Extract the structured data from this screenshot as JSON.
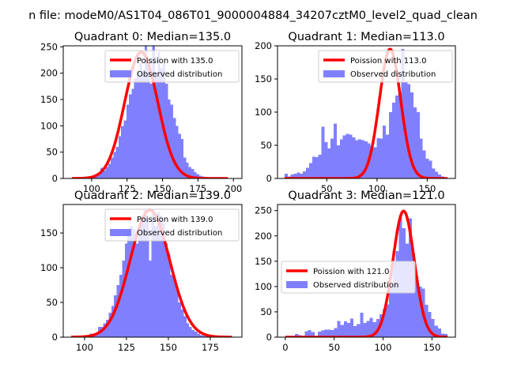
{
  "figure": {
    "suptitle": "n file: modeM0/AS1T04_086T01_9000004884_34207cztM0_level2_quad_clean"
  },
  "colors": {
    "poisson_line": "#ff0000",
    "histogram": "#8080ff",
    "axes": "#000000",
    "legend_border": "#cccccc"
  },
  "chart_data": [
    {
      "type": "bar",
      "title": "Quadrant 0: Median=135.0",
      "xlabel": "",
      "ylabel": "",
      "xlim": [
        80,
        206
      ],
      "ylim": [
        0,
        252
      ],
      "xticks": [
        100,
        125,
        150,
        175,
        200
      ],
      "yticks": [
        0,
        50,
        100,
        150,
        200,
        250
      ],
      "legend": {
        "location": "upper-right",
        "entries": [
          "Poission with 135.0",
          "Observed distribution"
        ]
      },
      "poisson_mean": 135.0,
      "poisson_peak": 240,
      "hist_bins": [
        86,
        196
      ],
      "hist_values": [
        0,
        0,
        0,
        0,
        0,
        1,
        2,
        3,
        5,
        8,
        10,
        20,
        15,
        22,
        28,
        40,
        50,
        60,
        80,
        100,
        110,
        140,
        160,
        170,
        190,
        205,
        220,
        200,
        260,
        215,
        180,
        255,
        200,
        240,
        210,
        220,
        180,
        150,
        140,
        115,
        100,
        85,
        75,
        40,
        30,
        22,
        18,
        12,
        8,
        5,
        4,
        2,
        1,
        1,
        0,
        0,
        0,
        0,
        0,
        0
      ]
    },
    {
      "type": "bar",
      "title": "Quadrant 1: Median=113.0",
      "xlabel": "",
      "ylabel": "",
      "xlim": [
        1,
        178
      ],
      "ylim": [
        0,
        200
      ],
      "xticks": [
        50,
        100,
        150
      ],
      "yticks": [
        0,
        50,
        100,
        150,
        200
      ],
      "legend": {
        "location": "upper-right",
        "entries": [
          "Poission with 113.0",
          "Observed distribution"
        ]
      },
      "poisson_mean": 113.0,
      "poisson_peak": 195,
      "hist_bins": [
        8,
        170
      ],
      "hist_values": [
        7,
        3,
        6,
        7,
        9,
        7,
        11,
        16,
        23,
        33,
        32,
        36,
        78,
        55,
        45,
        60,
        83,
        50,
        59,
        65,
        67,
        66,
        62,
        58,
        59,
        58,
        56,
        53,
        49,
        47,
        61,
        60,
        80,
        66,
        100,
        114,
        125,
        128,
        195,
        145,
        142,
        130,
        107,
        100,
        60,
        42,
        30,
        27,
        15,
        10,
        6,
        3,
        2
      ]
    },
    {
      "type": "bar",
      "title": "Quadrant 2: Median=139.0",
      "xlabel": "",
      "ylabel": "",
      "xlim": [
        87.3,
        193.9
      ],
      "ylim": [
        0,
        191
      ],
      "xticks": [
        100,
        125,
        150,
        175
      ],
      "yticks": [
        0,
        50,
        100,
        150
      ],
      "legend": {
        "location": "upper-right",
        "entries": [
          "Poission with 139.0",
          "Observed distribution"
        ]
      },
      "poisson_mean": 139.0,
      "poisson_peak": 183,
      "hist_bins": [
        92,
        188
      ],
      "hist_values": [
        0,
        0,
        0,
        0,
        1,
        3,
        2,
        5,
        4,
        4,
        15,
        15,
        20,
        25,
        35,
        45,
        60,
        75,
        90,
        110,
        135,
        150,
        160,
        155,
        135,
        160,
        172,
        183,
        170,
        110,
        185,
        160,
        180,
        175,
        165,
        135,
        120,
        90,
        85,
        70,
        50,
        40,
        30,
        20,
        15,
        10,
        8,
        5,
        3,
        2,
        1,
        2,
        0,
        0,
        0,
        0,
        0,
        0,
        0,
        0
      ]
    },
    {
      "type": "bar",
      "title": "Quadrant 3: Median=121.0",
      "xlabel": "",
      "ylabel": "",
      "xlim": [
        -8,
        174
      ],
      "ylim": [
        0,
        262
      ],
      "xticks": [
        0,
        50,
        100,
        150
      ],
      "yticks": [
        0,
        50,
        100,
        150,
        200,
        250
      ],
      "legend": {
        "location": "center-left",
        "entries": [
          "Poission with 121.0",
          "Observed distribution"
        ]
      },
      "poisson_mean": 121.0,
      "poisson_peak": 249,
      "hist_bins": [
        0,
        166
      ],
      "hist_values": [
        0,
        0,
        0,
        6,
        4,
        2,
        12,
        14,
        10,
        0,
        11,
        13,
        15,
        15,
        14,
        18,
        32,
        24,
        31,
        28,
        37,
        22,
        26,
        48,
        28,
        32,
        38,
        30,
        36,
        45,
        55,
        65,
        100,
        150,
        170,
        240,
        215,
        185,
        235,
        165,
        120,
        100,
        96,
        64,
        50,
        36,
        23,
        17,
        7,
        6
      ]
    }
  ]
}
